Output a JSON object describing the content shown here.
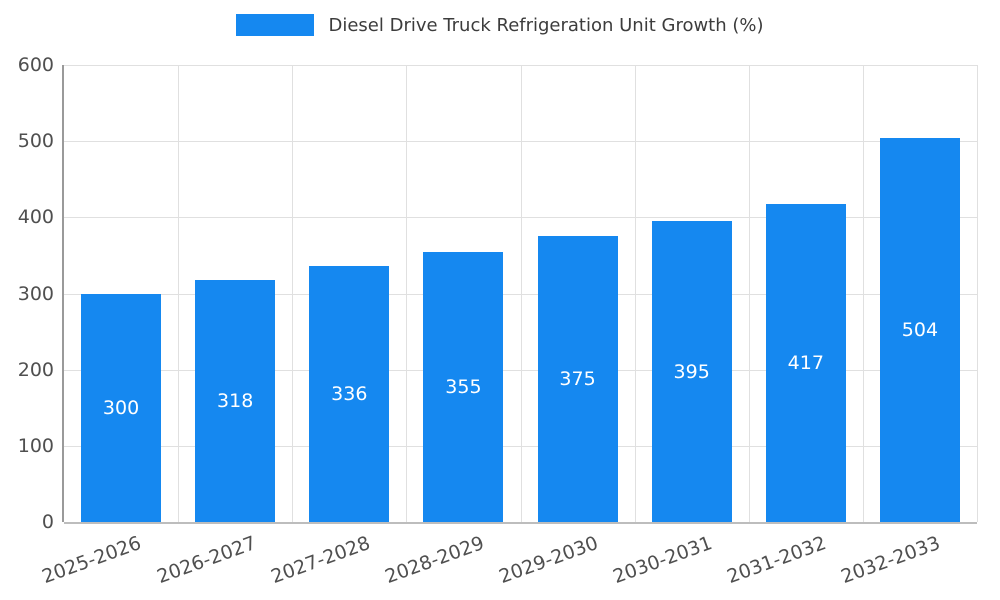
{
  "legend": {
    "label": "Diesel Drive Truck Refrigeration Unit Growth (%)",
    "swatch_color": "#1588f0"
  },
  "chart_data": {
    "type": "bar",
    "title": "Diesel Drive Truck Refrigeration Unit Growth (%)",
    "categories": [
      "2025-2026",
      "2026-2027",
      "2027-2028",
      "2028-2029",
      "2029-2030",
      "2030-2031",
      "2031-2032",
      "2032-2033"
    ],
    "values": [
      300,
      318,
      336,
      355,
      375,
      395,
      417,
      504
    ],
    "xlabel": "",
    "ylabel": "",
    "ylim": [
      0,
      600
    ],
    "yticks": [
      0,
      100,
      200,
      300,
      400,
      500,
      600
    ],
    "bar_color": "#1588f0",
    "grid": true,
    "legend_position": "top",
    "value_labels": "inside-center",
    "value_label_color": "#ffffff"
  },
  "colors": {
    "background": "#ffffff",
    "grid": "#e0e0e0",
    "axis": "#9a9a9a",
    "tick_text": "#4f4f4f",
    "title_text": "#3c3c3c"
  }
}
